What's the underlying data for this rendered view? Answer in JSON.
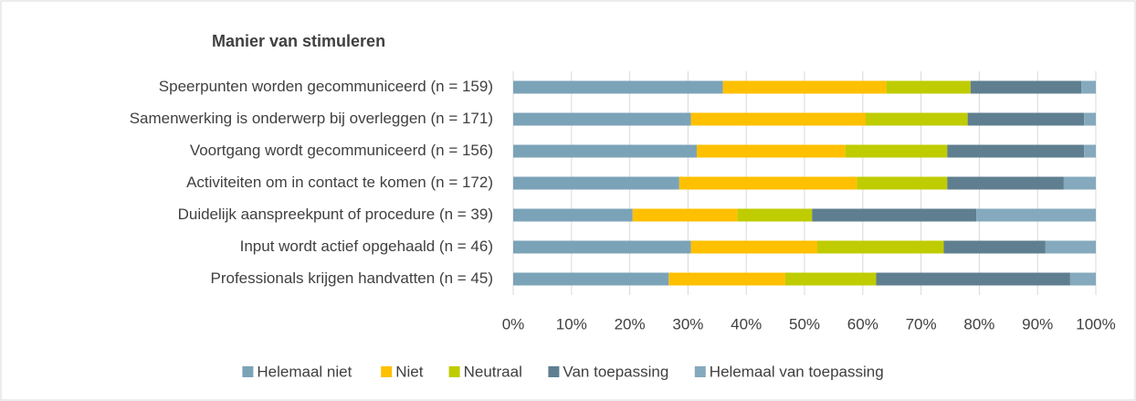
{
  "chart_data": {
    "type": "stacked-bar-horizontal",
    "title": "Manier van stimuleren",
    "categories": [
      "Speerpunten worden gecommuniceerd (n = 159)",
      "Samenwerking is onderwerp bij overleggen (n = 171)",
      "Voortgang wordt gecommuniceerd (n = 156)",
      "Activiteiten om in contact te komen (n = 172)",
      "Duidelijk aanspreekpunt of procedure (n = 39)",
      "Input wordt actief opgehaald (n = 46)",
      "Professionals krijgen handvatten (n = 45)"
    ],
    "series": [
      {
        "name": "Helemaal niet",
        "color": "#7ba3b8",
        "values": [
          36,
          30.5,
          31.5,
          28.5,
          20.5,
          30.5,
          26.7
        ]
      },
      {
        "name": "Niet",
        "color": "#ffc000",
        "values": [
          28,
          30,
          25.5,
          30.5,
          18,
          21.7,
          20
        ]
      },
      {
        "name": "Neutraal",
        "color": "#bfcc00",
        "values": [
          14.5,
          17.5,
          17.5,
          15.5,
          12.8,
          21.7,
          15.6
        ]
      },
      {
        "name": "Van toepassing",
        "color": "#5f7f90",
        "values": [
          19,
          20,
          23.5,
          20,
          28.2,
          17.4,
          33.3
        ]
      },
      {
        "name": "Helemaal van toepassing",
        "color": "#85a9bd",
        "values": [
          2.5,
          2,
          2,
          5.5,
          20.5,
          8.7,
          4.4
        ]
      }
    ],
    "xlim": [
      0,
      100
    ],
    "xticks": [
      {
        "value": 0,
        "label": "0%"
      },
      {
        "value": 10,
        "label": "10%"
      },
      {
        "value": 20,
        "label": "20%"
      },
      {
        "value": 30,
        "label": "30%"
      },
      {
        "value": 40,
        "label": "40%"
      },
      {
        "value": 50,
        "label": "50%"
      },
      {
        "value": 60,
        "label": "60%"
      },
      {
        "value": 70,
        "label": "70%"
      },
      {
        "value": 80,
        "label": "80%"
      },
      {
        "value": 90,
        "label": "90%"
      },
      {
        "value": 100,
        "label": "100%"
      }
    ],
    "grid": true,
    "legend": "bottom"
  }
}
